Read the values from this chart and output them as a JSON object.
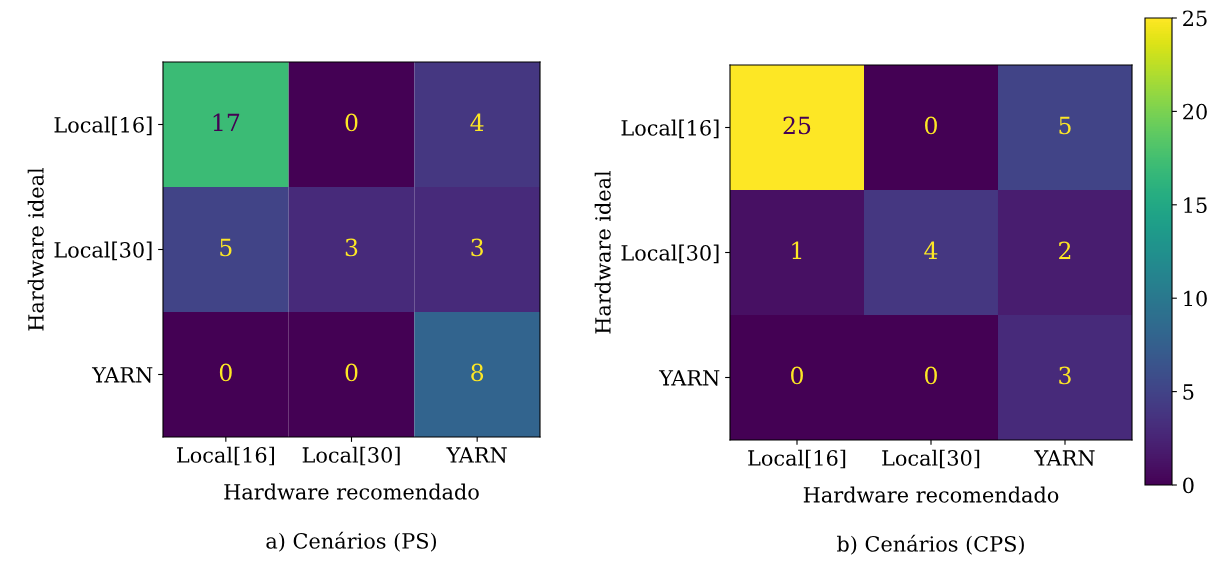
{
  "chart_data": [
    {
      "type": "heatmap",
      "categories": [
        "Local[16]",
        "Local[30]",
        "YARN"
      ],
      "y_categories": [
        "Local[16]",
        "Local[30]",
        "YARN"
      ],
      "cells": [
        [
          17,
          0,
          4
        ],
        [
          5,
          3,
          3
        ],
        [
          0,
          0,
          8
        ]
      ],
      "xlabel": "Hardware recomendado",
      "ylabel": "Hardware ideal",
      "data_labels": true,
      "annotations": [
        "a) Cenários (PS)"
      ]
    },
    {
      "type": "heatmap",
      "categories": [
        "Local[16]",
        "Local[30]",
        "YARN"
      ],
      "y_categories": [
        "Local[16]",
        "Local[30]",
        "YARN"
      ],
      "cells": [
        [
          25,
          0,
          5
        ],
        [
          1,
          4,
          2
        ],
        [
          0,
          0,
          3
        ]
      ],
      "clim": [
        0,
        25
      ],
      "cticks": [
        0,
        5,
        10,
        15,
        20,
        25
      ],
      "xlabel": "Hardware recomendado",
      "ylabel": "Hardware ideal",
      "data_labels": true,
      "annotations": [
        "b) Cenários (CPS)"
      ]
    }
  ]
}
